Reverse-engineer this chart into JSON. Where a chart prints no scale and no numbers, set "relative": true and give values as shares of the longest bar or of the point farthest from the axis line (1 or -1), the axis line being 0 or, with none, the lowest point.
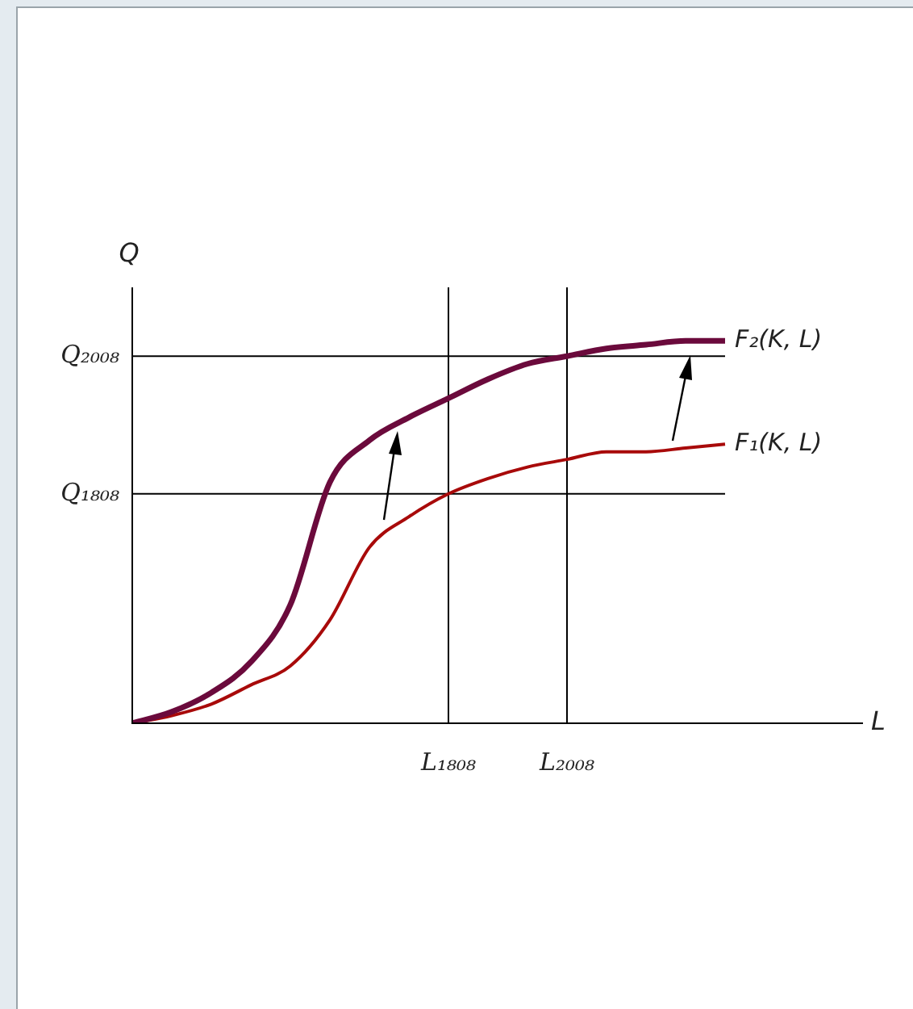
{
  "chart_data": {
    "type": "line",
    "relative": true,
    "annotations": [
      "L"
    ],
    "ylabel": "Q",
    "categories": [
      null,
      null,
      null,
      null,
      null,
      null,
      null,
      null,
      "L₁₈₀₈",
      null,
      null,
      "L₂₀₀₈",
      null,
      null,
      null,
      null
    ],
    "series": [
      {
        "name": "F₂(K, L)",
        "color": "#6b0a3c",
        "values": [
          0,
          0.03,
          0.08,
          0.16,
          0.31,
          0.63,
          0.74,
          0.8,
          0.85,
          0.9,
          0.94,
          0.96,
          0.98,
          0.99,
          1,
          1
        ]
      },
      {
        "name": "F₁(K, L)",
        "color": "#a80a0a",
        "values": [
          0,
          0.02,
          0.05,
          0.1,
          0.15,
          0.27,
          0.46,
          0.54,
          0.6,
          0.64,
          0.67,
          0.69,
          0.71,
          0.71,
          0.72,
          0.73
        ]
      }
    ],
    "ref_lines": [
      {
        "axis": "y",
        "value": 0.96,
        "label": "Q₂₀₀₈",
        "color": "#000000"
      },
      {
        "axis": "y",
        "value": 0.6,
        "label": "Q₁₈₀₈",
        "color": "#000000"
      },
      {
        "axis": "x",
        "value": "L₁₈₀₈",
        "color": "#000000"
      },
      {
        "axis": "x",
        "value": "L₂₀₀₈",
        "color": "#000000"
      }
    ],
    "grid": false,
    "legend": false,
    "marker": "none",
    "line_style": "solid"
  }
}
